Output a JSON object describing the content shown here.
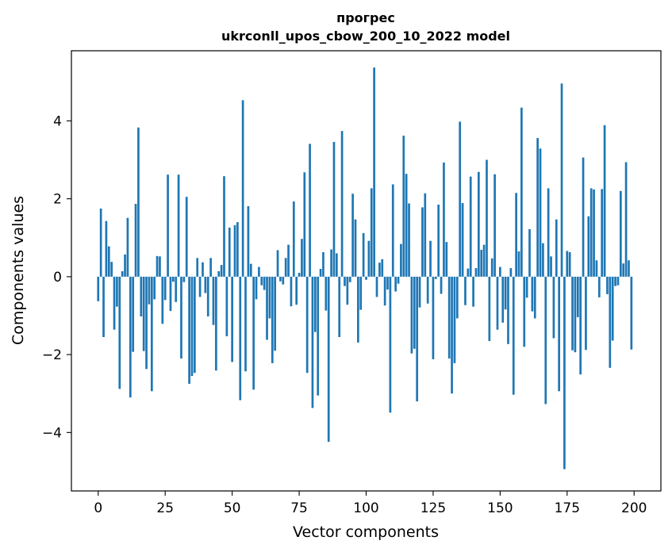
{
  "chart_data": {
    "type": "bar",
    "title_line1": "прогрес",
    "title_line2": "ukrconll_upos_cbow_200_10_2022 model",
    "xlabel": "Vector components",
    "ylabel": "Components values",
    "xlim": [
      -10,
      210
    ],
    "ylim": [
      -5.5,
      5.8
    ],
    "xticks": [
      0,
      25,
      50,
      75,
      100,
      125,
      150,
      175,
      200
    ],
    "xtick_labels": [
      "0",
      "25",
      "50",
      "75",
      "100",
      "125",
      "150",
      "175",
      "200"
    ],
    "yticks": [
      -4,
      -2,
      0,
      2,
      4
    ],
    "ytick_labels": [
      "−4",
      "−2",
      "0",
      "2",
      "4"
    ],
    "grid": false,
    "color": "#1f77b4",
    "values": [
      -0.63,
      1.75,
      -1.55,
      1.43,
      0.78,
      0.38,
      -1.36,
      -0.77,
      -2.88,
      0.14,
      0.57,
      1.51,
      -3.1,
      -1.93,
      1.87,
      3.83,
      -1.02,
      -1.91,
      -2.37,
      -0.71,
      -2.94,
      -0.58,
      0.53,
      0.52,
      -1.21,
      -0.6,
      2.62,
      -0.88,
      -0.13,
      -0.65,
      2.62,
      -2.1,
      -0.14,
      2.05,
      -2.75,
      -2.55,
      -2.47,
      0.48,
      -0.52,
      0.37,
      -0.42,
      -1.02,
      0.48,
      -1.24,
      -2.41,
      0.14,
      0.3,
      2.58,
      -1.53,
      1.26,
      -2.19,
      1.32,
      1.4,
      -3.17,
      4.53,
      -2.43,
      1.81,
      0.33,
      -2.9,
      -0.58,
      0.25,
      -0.22,
      -0.34,
      -1.62,
      -1.07,
      -2.22,
      -1.9,
      0.68,
      -0.12,
      -0.2,
      0.48,
      0.82,
      -0.76,
      1.93,
      -0.72,
      0.1,
      0.97,
      2.68,
      -2.47,
      3.41,
      -3.37,
      -1.42,
      -3.05,
      0.2,
      0.63,
      -0.87,
      -4.24,
      0.7,
      3.46,
      0.6,
      -1.55,
      3.74,
      -0.24,
      -0.72,
      -0.14,
      2.13,
      1.47,
      -1.69,
      -0.85,
      1.12,
      -0.08,
      0.92,
      2.27,
      5.37,
      -0.52,
      0.36,
      0.45,
      -0.74,
      -0.33,
      -3.49,
      2.37,
      -0.38,
      -0.18,
      0.84,
      3.62,
      2.64,
      1.88,
      -1.97,
      -1.85,
      -3.2,
      -0.79,
      1.78,
      2.14,
      -0.69,
      0.92,
      -2.12,
      -0.06,
      1.85,
      -0.44,
      2.93,
      0.89,
      -2.1,
      -3.0,
      -2.22,
      -1.07,
      3.98,
      1.89,
      -0.73,
      0.21,
      2.57,
      -0.77,
      0.22,
      2.69,
      0.69,
      0.82,
      3.0,
      -1.65,
      0.47,
      2.63,
      -1.36,
      0.25,
      -1.18,
      -0.84,
      -1.73,
      0.22,
      -3.03,
      2.15,
      0.65,
      4.34,
      -1.8,
      -0.54,
      1.22,
      -0.89,
      -1.07,
      3.56,
      3.29,
      0.86,
      -3.27,
      2.27,
      0.52,
      -1.58,
      1.47,
      -2.94,
      4.96,
      -4.94,
      0.66,
      0.63,
      -1.89,
      -1.94,
      -1.04,
      -2.51,
      3.06,
      -1.88,
      1.55,
      2.27,
      2.24,
      0.42,
      -0.53,
      2.25,
      3.89,
      -0.45,
      -2.34,
      -1.64,
      -0.24,
      -0.22,
      2.2,
      0.34,
      2.94,
      0.42,
      -1.87
    ]
  }
}
